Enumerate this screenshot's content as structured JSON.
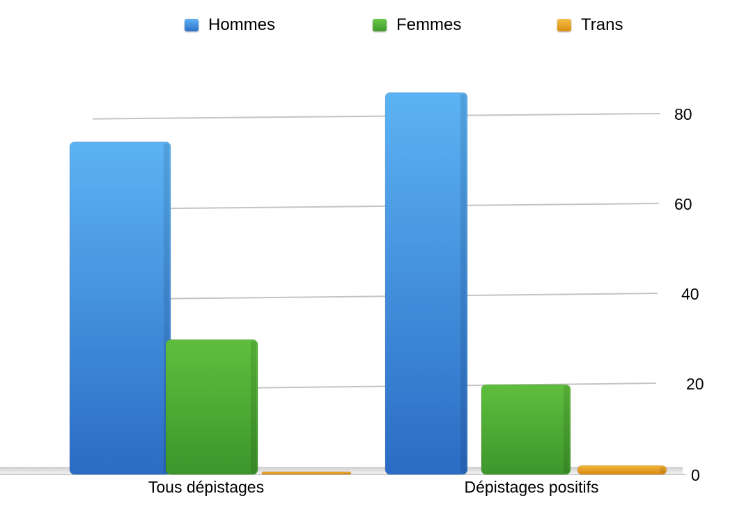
{
  "chart_data": {
    "type": "bar",
    "categories": [
      "Tous dépistages",
      "Dépistages positifs"
    ],
    "series": [
      {
        "name": "Hommes",
        "values": [
          74,
          85
        ],
        "color": "#3b8fe0"
      },
      {
        "name": "Femmes",
        "values": [
          30,
          20
        ],
        "color": "#4fb03a"
      },
      {
        "name": "Trans",
        "values": [
          0.5,
          2
        ],
        "color": "#e9a524"
      }
    ],
    "y_ticks": [
      "0",
      "20",
      "40",
      "60",
      "80"
    ],
    "ylim": [
      0,
      90
    ],
    "grid": true,
    "legend_position": "top"
  }
}
